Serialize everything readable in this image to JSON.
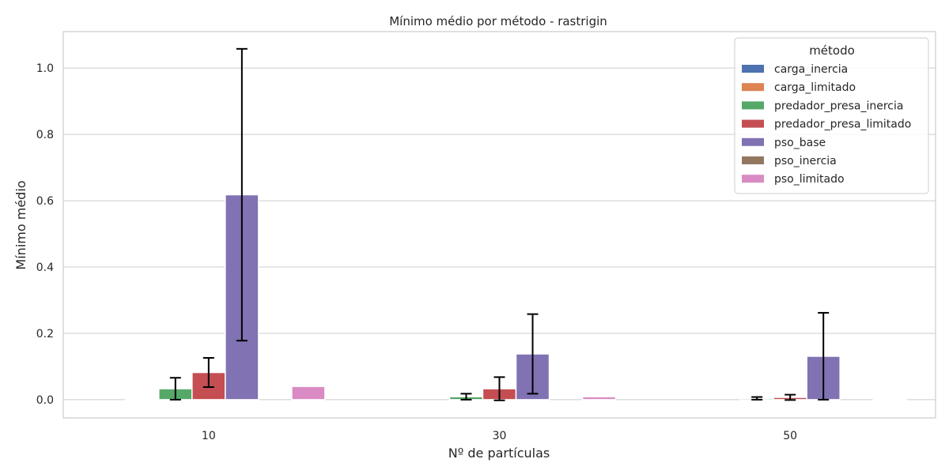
{
  "chart_data": {
    "type": "bar",
    "title": "Mínimo médio por método - rastrigin",
    "xlabel": "Nº de partículas",
    "ylabel": "Mínimo médio",
    "categories": [
      "10",
      "30",
      "50"
    ],
    "ylim": [
      -0.055,
      1.11
    ],
    "yticks": [
      0.0,
      0.2,
      0.4,
      0.6,
      0.8,
      1.0
    ],
    "ytick_labels": [
      "0.0",
      "0.2",
      "0.4",
      "0.6",
      "0.8",
      "1.0"
    ],
    "grid": true,
    "legend": {
      "title": "método",
      "placement": "top-right"
    },
    "series": [
      {
        "name": "carga_inercia",
        "color": "#4c72b0",
        "values": [
          0.0,
          0.0,
          0.0
        ],
        "err": [
          0.0,
          0.0,
          0.0
        ]
      },
      {
        "name": "carga_limitado",
        "color": "#dd8452",
        "values": [
          0.001,
          0.0,
          0.0
        ],
        "err": [
          0.0,
          0.0,
          0.0
        ]
      },
      {
        "name": "predador_presa_inercia",
        "color": "#55a868",
        "values": [
          0.033,
          0.009,
          0.004
        ],
        "err": [
          0.033,
          0.009,
          0.004
        ]
      },
      {
        "name": "predador_presa_limitado",
        "color": "#c44e52",
        "values": [
          0.082,
          0.033,
          0.007
        ],
        "err": [
          0.044,
          0.035,
          0.008
        ]
      },
      {
        "name": "pso_base",
        "color": "#8172b3",
        "values": [
          0.618,
          0.138,
          0.131
        ],
        "err": [
          0.44,
          0.12,
          0.131
        ]
      },
      {
        "name": "pso_inercia",
        "color": "#937860",
        "values": [
          0.0,
          0.0,
          0.0
        ],
        "err": [
          0.0,
          0.0,
          0.0
        ]
      },
      {
        "name": "pso_limitado",
        "color": "#da8bc3",
        "values": [
          0.04,
          0.009,
          0.002
        ],
        "err": [
          0.0,
          0.0,
          0.0
        ]
      }
    ]
  }
}
